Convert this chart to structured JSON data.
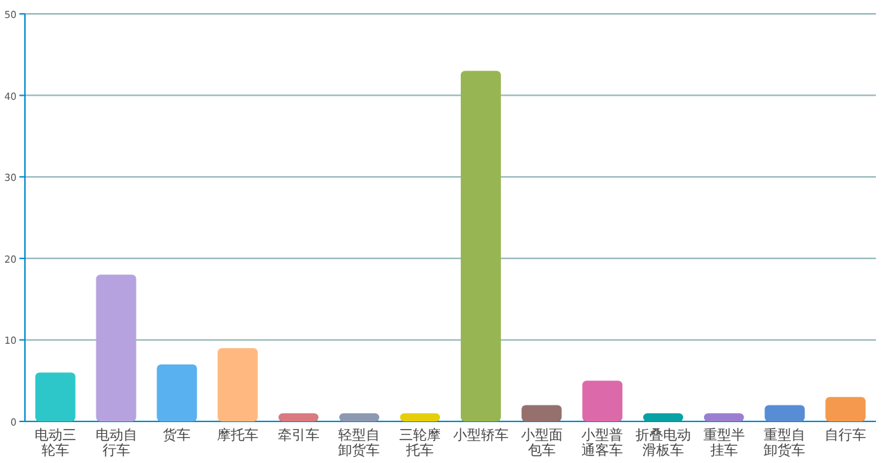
{
  "chart_data": {
    "type": "bar",
    "categories": [
      "电动三轮车",
      "电动自行车",
      "货车",
      "摩托车",
      "牵引车",
      "轻型自卸货车",
      "三轮摩托车",
      "小型轿车",
      "小型面包车",
      "小型普通客车",
      "折叠电动滑板车",
      "重型半挂车",
      "重型自卸货车",
      "自行车"
    ],
    "values": [
      6,
      18,
      7,
      9,
      1,
      1,
      1,
      43,
      2,
      5,
      1,
      1,
      2,
      3
    ],
    "colors": [
      "#2ec7c9",
      "#b6a2de",
      "#5ab1ef",
      "#ffb980",
      "#d87a80",
      "#8d98b3",
      "#e5cf0d",
      "#97b552",
      "#95706d",
      "#dc69aa",
      "#07a2a4",
      "#9a7fd1",
      "#588dd5",
      "#f5994e"
    ],
    "ylim": [
      0,
      50
    ],
    "yticks": [
      0,
      10,
      20,
      30,
      40,
      50
    ],
    "grid": "y"
  }
}
